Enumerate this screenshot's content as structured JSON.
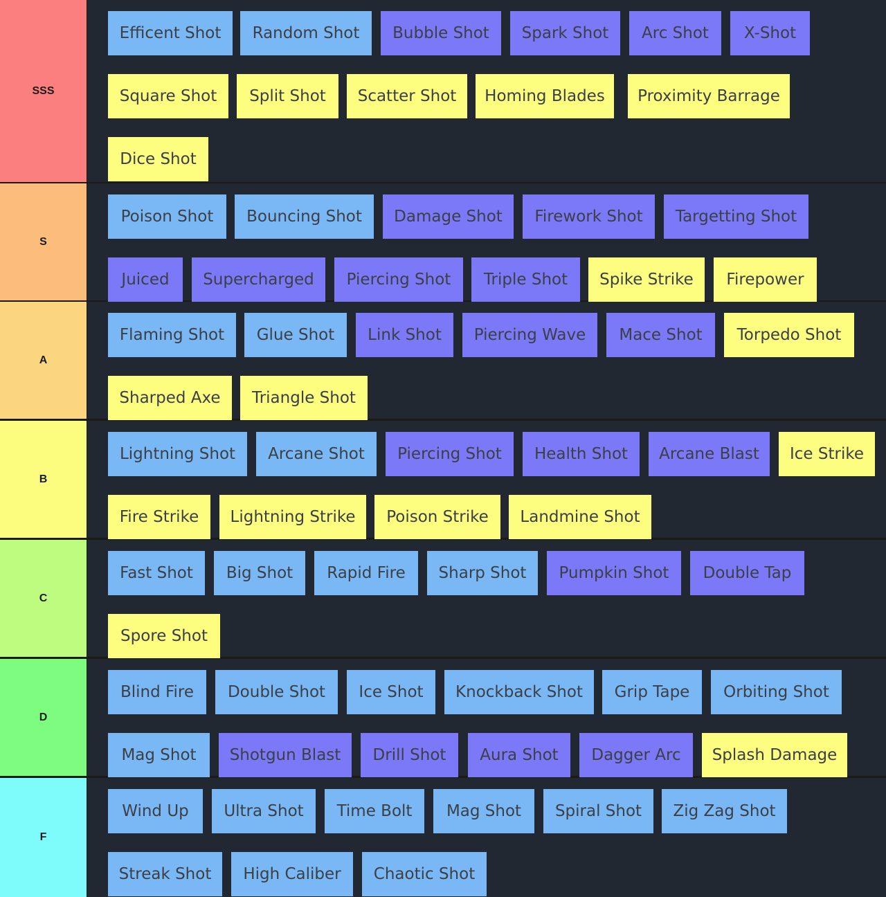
{
  "colors": {
    "blue_item": "#7ab8f5",
    "purple_item": "#7b79f7",
    "yellow_item": "#fdfd7f",
    "row_background": "#222831",
    "separator": "#1a1a17"
  },
  "tiers": [
    {
      "label": "SSS",
      "color": "#fc7f7f",
      "items": [
        {
          "text": "Efficent Shot",
          "color": "blue"
        },
        {
          "text": "Random Shot",
          "color": "blue"
        },
        {
          "text": "Bubble Shot",
          "color": "purple"
        },
        {
          "text": "Spark Shot",
          "color": "purple"
        },
        {
          "text": "Arc Shot",
          "color": "purple"
        },
        {
          "text": "X-Shot",
          "color": "purple"
        },
        {
          "text": "Square Shot",
          "color": "yellow"
        },
        {
          "text": "Split Shot",
          "color": "yellow"
        },
        {
          "text": "Scatter Shot",
          "color": "yellow"
        },
        {
          "text": "Homing Blades",
          "color": "yellow"
        },
        {
          "text": "Proximity Barrage",
          "color": "yellow"
        },
        {
          "text": "Dice Shot",
          "color": "yellow"
        }
      ]
    },
    {
      "label": "S",
      "color": "#fcbc7c",
      "items": [
        {
          "text": "Poison Shot",
          "color": "blue"
        },
        {
          "text": "Bouncing Shot",
          "color": "blue"
        },
        {
          "text": "Damage Shot",
          "color": "purple"
        },
        {
          "text": "Firework Shot",
          "color": "purple"
        },
        {
          "text": "Targetting Shot",
          "color": "purple"
        },
        {
          "text": "Juiced",
          "color": "purple"
        },
        {
          "text": "Supercharged",
          "color": "purple"
        },
        {
          "text": "Piercing Shot",
          "color": "purple"
        },
        {
          "text": "Triple Shot",
          "color": "purple"
        },
        {
          "text": "Spike Strike",
          "color": "yellow"
        },
        {
          "text": "Firepower",
          "color": "yellow"
        }
      ]
    },
    {
      "label": "A",
      "color": "#fcd67f",
      "items": [
        {
          "text": "Flaming Shot",
          "color": "blue"
        },
        {
          "text": "Glue Shot",
          "color": "blue"
        },
        {
          "text": "Link Shot",
          "color": "purple"
        },
        {
          "text": "Piercing Wave",
          "color": "purple"
        },
        {
          "text": "Mace Shot",
          "color": "purple"
        },
        {
          "text": "Torpedo Shot",
          "color": "yellow"
        },
        {
          "text": "Sharped Axe",
          "color": "yellow"
        },
        {
          "text": "Triangle Shot",
          "color": "yellow"
        }
      ]
    },
    {
      "label": "B",
      "color": "#fcfc7f",
      "items": [
        {
          "text": "Lightning Shot",
          "color": "blue"
        },
        {
          "text": "Arcane Shot",
          "color": "blue"
        },
        {
          "text": "Piercing Shot",
          "color": "purple"
        },
        {
          "text": "Health Shot",
          "color": "purple"
        },
        {
          "text": "Arcane Blast",
          "color": "purple"
        },
        {
          "text": "Ice Strike",
          "color": "yellow"
        },
        {
          "text": "Fire Strike",
          "color": "yellow"
        },
        {
          "text": "Lightning Strike",
          "color": "yellow"
        },
        {
          "text": "Poison Strike",
          "color": "yellow"
        },
        {
          "text": "Landmine Shot",
          "color": "yellow"
        }
      ]
    },
    {
      "label": "C",
      "color": "#befc7f",
      "items": [
        {
          "text": "Fast Shot",
          "color": "blue"
        },
        {
          "text": "Big Shot",
          "color": "blue"
        },
        {
          "text": "Rapid Fire",
          "color": "blue"
        },
        {
          "text": "Sharp Shot",
          "color": "blue"
        },
        {
          "text": "Pumpkin Shot",
          "color": "purple"
        },
        {
          "text": "Double Tap",
          "color": "purple"
        },
        {
          "text": "Spore Shot",
          "color": "yellow"
        }
      ]
    },
    {
      "label": "D",
      "color": "#7efc7f",
      "items": [
        {
          "text": "Blind Fire",
          "color": "blue"
        },
        {
          "text": "Double Shot",
          "color": "blue"
        },
        {
          "text": "Ice Shot",
          "color": "blue"
        },
        {
          "text": "Knockback Shot",
          "color": "blue"
        },
        {
          "text": "Grip Tape",
          "color": "blue"
        },
        {
          "text": "Orbiting Shot",
          "color": "blue"
        },
        {
          "text": "Mag Shot",
          "color": "blue"
        },
        {
          "text": "Shotgun Blast",
          "color": "purple"
        },
        {
          "text": "Drill Shot",
          "color": "purple"
        },
        {
          "text": "Aura Shot",
          "color": "purple"
        },
        {
          "text": "Dagger Arc",
          "color": "purple"
        },
        {
          "text": "Splash Damage",
          "color": "yellow"
        }
      ]
    },
    {
      "label": "F",
      "color": "#7efcfc",
      "items": [
        {
          "text": "Wind Up",
          "color": "blue"
        },
        {
          "text": "Ultra Shot",
          "color": "blue"
        },
        {
          "text": "Time Bolt",
          "color": "blue"
        },
        {
          "text": "Mag Shot",
          "color": "blue"
        },
        {
          "text": "Spiral Shot",
          "color": "blue"
        },
        {
          "text": "Zig Zag Shot",
          "color": "blue"
        },
        {
          "text": "Streak Shot",
          "color": "blue"
        },
        {
          "text": "High Caliber",
          "color": "blue"
        },
        {
          "text": "Chaotic Shot",
          "color": "blue"
        }
      ]
    }
  ]
}
